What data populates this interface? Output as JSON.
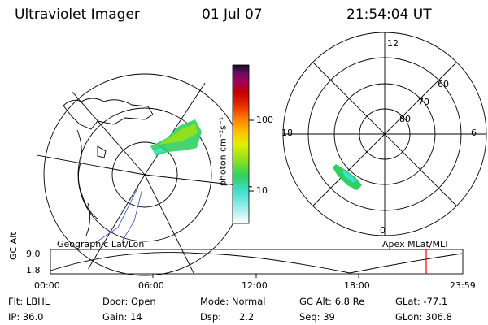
{
  "header": {
    "instrument": "Ultraviolet Imager",
    "date": "01 Jul 07",
    "time": "21:54:04 UT"
  },
  "left_panel": {
    "caption": "Geographic Lat/Lon"
  },
  "right_panel": {
    "caption": "Apex MLat/MLT",
    "mlt_labels": [
      "12",
      "18",
      "6",
      "0"
    ],
    "mlat_labels": [
      "60",
      "70",
      "80"
    ]
  },
  "colorbar": {
    "unit_label": "photon cm⁻²s⁻¹",
    "ticks": [
      "100",
      "10"
    ],
    "scale": "log",
    "colors": [
      "#ffffff",
      "#b0f0f0",
      "#40e0d0",
      "#30d060",
      "#90e020",
      "#e0f000",
      "#ffc000",
      "#ff8000",
      "#e83000",
      "#c00000",
      "#a00060",
      "#601060",
      "#200820"
    ]
  },
  "altitude_plot": {
    "ylabel": "GC Alt",
    "y_ticks": [
      "9.0",
      "1.8"
    ],
    "x_ticks": [
      "00:00",
      "06:00",
      "12:00",
      "18:00",
      "23:59"
    ],
    "marker_color": "#ff0000"
  },
  "info": {
    "filter": "Flt: LBHL",
    "ip": "IP: 36.0",
    "door": "Door: Open",
    "gain": "Gain: 14",
    "mode": "Mode: Normal",
    "dsp": "Dsp:      2.2",
    "gc_alt": "GC Alt: 6.8 Re",
    "seq": "Seq: 39",
    "glat": "GLat: -77.1",
    "glon": "GLon: 306.8"
  }
}
